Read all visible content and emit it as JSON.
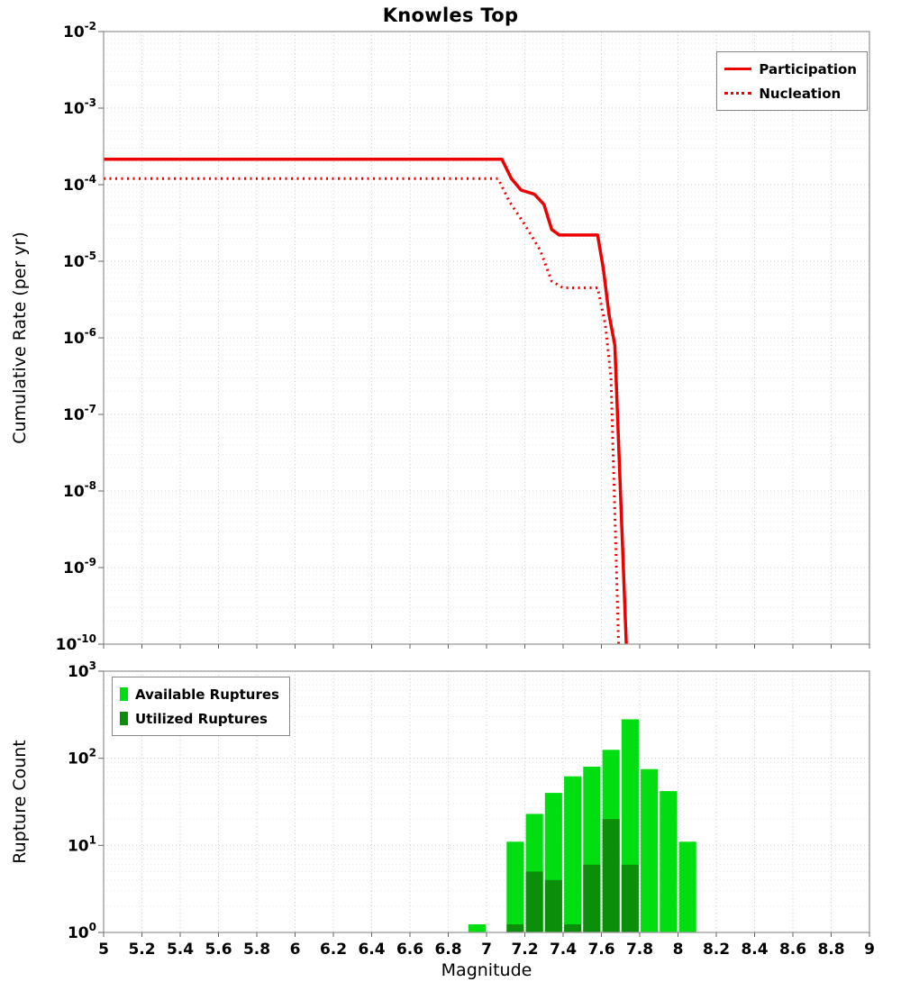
{
  "chart_data": [
    {
      "type": "line",
      "panel": "top",
      "title": "Knowles Top",
      "ylabel": "Cumulative Rate (per yr)",
      "xlim": [
        5,
        9
      ],
      "ylog_exponents": [
        -10,
        -2
      ],
      "grid": true,
      "x_ticks": [
        5,
        5.2,
        5.4,
        5.6,
        5.8,
        6,
        6.2,
        6.4,
        6.6,
        6.8,
        7,
        7.2,
        7.4,
        7.6,
        7.8,
        8,
        8.2,
        8.4,
        8.6,
        8.8,
        9
      ],
      "legend": {
        "position": "top-right",
        "entries": [
          {
            "label": "Participation",
            "line_style": "solid",
            "color": "#ed0000"
          },
          {
            "label": "Nucleation",
            "line_style": "dotted",
            "color": "#ed0000"
          }
        ]
      },
      "series": [
        {
          "name": "Participation",
          "color": "#ed0000",
          "style": "solid",
          "width": 3.5,
          "points": [
            [
              5.0,
              0.000215
            ],
            [
              7.08,
              0.000215
            ],
            [
              7.13,
              0.00012
            ],
            [
              7.18,
              8.5e-05
            ],
            [
              7.25,
              7.5e-05
            ],
            [
              7.3,
              5.5e-05
            ],
            [
              7.34,
              2.6e-05
            ],
            [
              7.38,
              2.2e-05
            ],
            [
              7.58,
              2.2e-05
            ],
            [
              7.61,
              8e-06
            ],
            [
              7.64,
              2e-06
            ],
            [
              7.67,
              8e-07
            ],
            [
              7.73,
              1e-10
            ]
          ]
        },
        {
          "name": "Nucleation",
          "color": "#ed0000",
          "style": "dotted",
          "width": 3,
          "points": [
            [
              5.0,
              0.00012
            ],
            [
              7.06,
              0.00012
            ],
            [
              7.12,
              6e-05
            ],
            [
              7.2,
              3e-05
            ],
            [
              7.28,
              1.4e-05
            ],
            [
              7.34,
              5.5e-06
            ],
            [
              7.4,
              4.5e-06
            ],
            [
              7.58,
              4.5e-06
            ],
            [
              7.62,
              1.5e-06
            ],
            [
              7.65,
              3e-07
            ],
            [
              7.69,
              1e-10
            ]
          ]
        }
      ]
    },
    {
      "type": "bar",
      "panel": "bottom",
      "xlabel": "Magnitude",
      "ylabel": "Rupture Count",
      "xlim": [
        5,
        9
      ],
      "ylog_exponents": [
        0,
        3
      ],
      "grid": true,
      "bin_width": 0.1,
      "x_ticks": [
        5,
        5.2,
        5.4,
        5.6,
        5.8,
        6,
        6.2,
        6.4,
        6.6,
        6.8,
        7,
        7.2,
        7.4,
        7.6,
        7.8,
        8,
        8.2,
        8.4,
        8.6,
        8.8,
        9
      ],
      "x_tick_labels": [
        "5",
        "5.2",
        "5.4",
        "5.6",
        "5.8",
        "6",
        "6.2",
        "6.4",
        "6.6",
        "6.8",
        "7",
        "7.2",
        "7.4",
        "7.6",
        "7.8",
        "8",
        "8.2",
        "8.4",
        "8.6",
        "8.8",
        "9"
      ],
      "legend": {
        "position": "top-left",
        "entries": [
          {
            "label": "Available Ruptures",
            "color": "#00dd11"
          },
          {
            "label": "Utilized Ruptures",
            "color": "#0b8f0b"
          }
        ]
      },
      "series": [
        {
          "name": "Available Ruptures",
          "color": "#00dd11",
          "bars": [
            [
              6.95,
              1
            ],
            [
              7.15,
              11
            ],
            [
              7.25,
              23
            ],
            [
              7.35,
              40
            ],
            [
              7.45,
              62
            ],
            [
              7.55,
              80
            ],
            [
              7.65,
              125
            ],
            [
              7.75,
              280
            ],
            [
              7.85,
              75
            ],
            [
              7.95,
              42
            ],
            [
              8.05,
              11
            ]
          ]
        },
        {
          "name": "Utilized Ruptures",
          "color": "#0b8f0b",
          "bars": [
            [
              7.15,
              1
            ],
            [
              7.25,
              5
            ],
            [
              7.35,
              4
            ],
            [
              7.45,
              1
            ],
            [
              7.55,
              6
            ],
            [
              7.65,
              20
            ],
            [
              7.75,
              6
            ]
          ]
        }
      ]
    }
  ]
}
